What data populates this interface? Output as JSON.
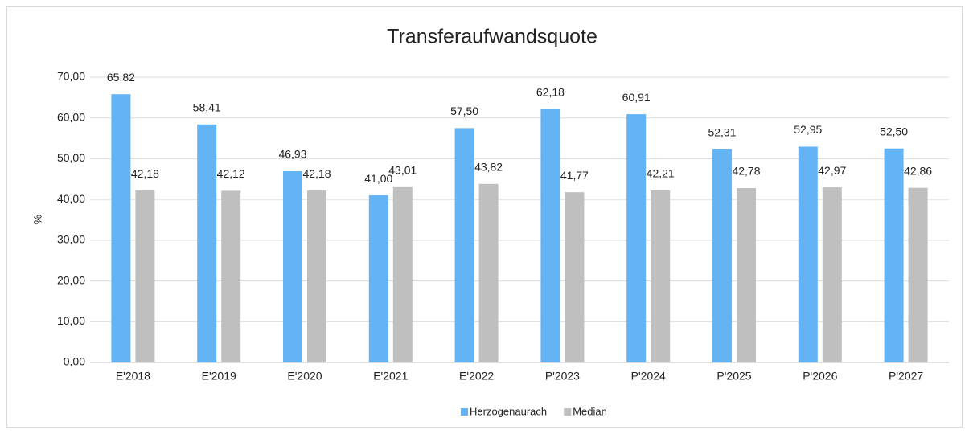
{
  "chart_data": {
    "type": "bar",
    "title": "Transferaufwandsquote",
    "y_label": "%",
    "categories": [
      "E'2018",
      "E'2019",
      "E'2020",
      "E'2021",
      "E'2022",
      "P'2023",
      "P'2024",
      "P'2025",
      "P'2026",
      "P'2027"
    ],
    "series": [
      {
        "name": "Herzogenaurach",
        "color": "#63b3f5",
        "values": [
          65.82,
          58.41,
          46.93,
          41.0,
          57.5,
          62.18,
          60.91,
          52.31,
          52.95,
          52.5
        ],
        "value_labels": [
          "65,82",
          "58,41",
          "46,93",
          "41,00",
          "57,50",
          "62,18",
          "60,91",
          "52,31",
          "52,95",
          "52,50"
        ]
      },
      {
        "name": "Median",
        "color": "#bfbfbf",
        "values": [
          42.18,
          42.12,
          42.18,
          43.01,
          43.82,
          41.77,
          42.21,
          42.78,
          42.97,
          42.86
        ],
        "value_labels": [
          "42,18",
          "42,12",
          "42,18",
          "43,01",
          "43,82",
          "41,77",
          "42,21",
          "42,78",
          "42,97",
          "42,86"
        ]
      }
    ],
    "ylim": [
      0,
      70
    ],
    "yticks": [
      {
        "value": 0,
        "label": "0,00"
      },
      {
        "value": 10,
        "label": "10,00"
      },
      {
        "value": 20,
        "label": "20,00"
      },
      {
        "value": 30,
        "label": "30,00"
      },
      {
        "value": 40,
        "label": "40,00"
      },
      {
        "value": 50,
        "label": "50,00"
      },
      {
        "value": 60,
        "label": "60,00"
      },
      {
        "value": 70,
        "label": "70,00"
      }
    ],
    "grid": true,
    "legend": "bottom"
  }
}
